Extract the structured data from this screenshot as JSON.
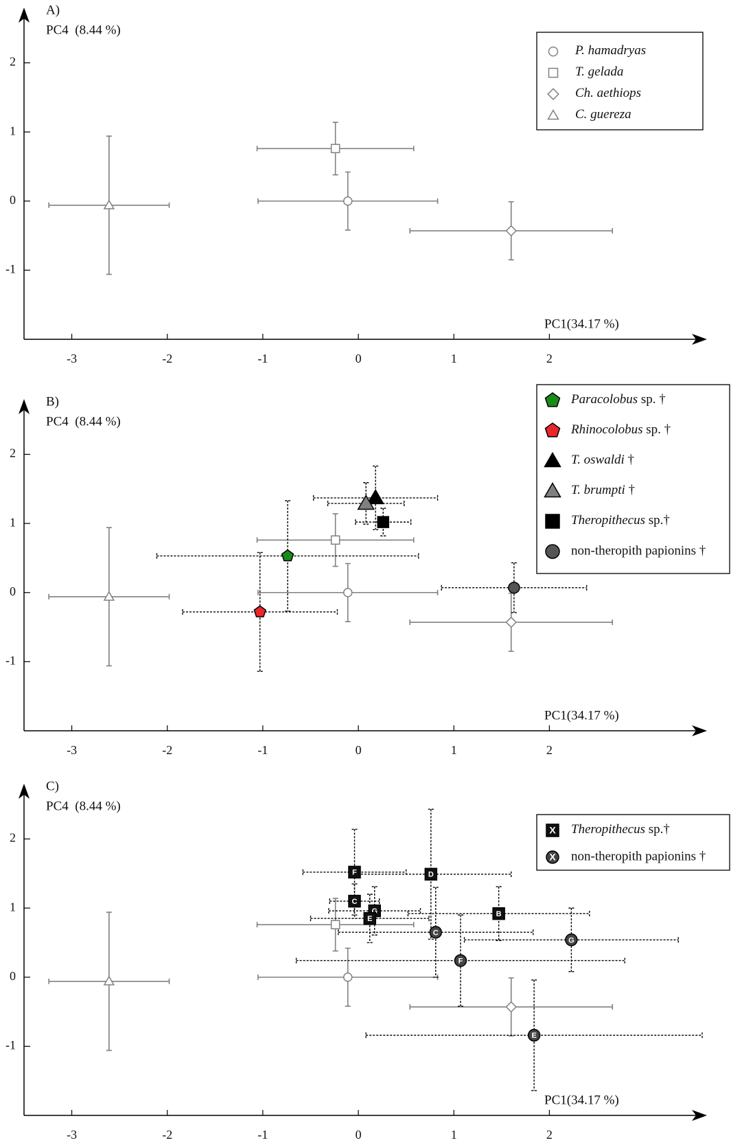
{
  "chart_data": [
    {
      "type": "scatter",
      "title": "A)",
      "x_label": "PC1(34.17 %)",
      "y_label": "PC4  (8.44 %)",
      "xlim": [
        -3.5,
        3.65
      ],
      "ylim": [
        -2,
        2.8
      ],
      "xticks": [
        -3,
        -2,
        -1,
        0,
        1,
        2
      ],
      "yticks": [
        -1,
        0,
        1,
        2
      ],
      "legend": "upper right",
      "series": [
        {
          "name": "P. hamadryas",
          "italic": true,
          "marker": "circle",
          "color": "#ffffff",
          "stroke": "#808080",
          "line": "solid",
          "x": [
            -0.11
          ],
          "values": [
            0
          ],
          "xerr": [
            0.94
          ],
          "yerr": [
            0.42
          ]
        },
        {
          "name": "T. gelada",
          "italic": true,
          "marker": "square",
          "color": "#ffffff",
          "stroke": "#808080",
          "line": "solid",
          "x": [
            -0.24
          ],
          "values": [
            0.76
          ],
          "xerr": [
            0.82
          ],
          "yerr": [
            0.38
          ]
        },
        {
          "name": "Ch. aethiops",
          "italic": true,
          "marker": "diamond",
          "color": "#ffffff",
          "stroke": "#808080",
          "line": "solid",
          "x": [
            1.6
          ],
          "values": [
            -0.43
          ],
          "xerr": [
            1.06
          ],
          "yerr": [
            0.42
          ]
        },
        {
          "name": "C. guereza",
          "italic": true,
          "marker": "triangle",
          "color": "#ffffff",
          "stroke": "#808080",
          "line": "solid",
          "x": [
            -2.61
          ],
          "values": [
            -0.06
          ],
          "xerr": [
            0.63
          ],
          "yerr": [
            1.0
          ]
        }
      ]
    },
    {
      "type": "scatter",
      "title": "B)",
      "x_label": "PC1(34.17 %)",
      "y_label": "PC4  (8.44 %)",
      "xlim": [
        -3.5,
        3.65
      ],
      "ylim": [
        -2,
        2.8
      ],
      "xticks": [
        -3,
        -2,
        -1,
        0,
        1,
        2
      ],
      "yticks": [
        -1,
        0,
        1,
        2
      ],
      "legend": "upper right",
      "series": [
        {
          "marker": "circle",
          "color": "#ffffff",
          "stroke": "#808080",
          "line": "solid",
          "x": [
            -0.11
          ],
          "values": [
            0
          ],
          "xerr": [
            0.94
          ],
          "yerr": [
            0.42
          ]
        },
        {
          "marker": "square",
          "color": "#ffffff",
          "stroke": "#808080",
          "line": "solid",
          "x": [
            -0.24
          ],
          "values": [
            0.76
          ],
          "xerr": [
            0.82
          ],
          "yerr": [
            0.38
          ]
        },
        {
          "marker": "diamond",
          "color": "#ffffff",
          "stroke": "#808080",
          "line": "solid",
          "x": [
            1.6
          ],
          "values": [
            -0.43
          ],
          "xerr": [
            1.06
          ],
          "yerr": [
            0.42
          ]
        },
        {
          "marker": "triangle",
          "color": "#ffffff",
          "stroke": "#808080",
          "line": "solid",
          "x": [
            -2.61
          ],
          "values": [
            -0.06
          ],
          "xerr": [
            0.63
          ],
          "yerr": [
            1.0
          ]
        },
        {
          "name": "Paracolobus sp. †",
          "italic": true,
          "marker": "pentagon",
          "color": "#1a8a1a",
          "stroke": "#000000",
          "line": "dashed",
          "x": [
            -0.74
          ],
          "values": [
            0.53
          ],
          "xerr": [
            1.37
          ],
          "yerr": [
            0.8
          ]
        },
        {
          "name": "Rhinocolobus sp. †",
          "italic": true,
          "marker": "pentagon",
          "color": "#e8262b",
          "stroke": "#000000",
          "line": "dashed",
          "x": [
            -1.03
          ],
          "values": [
            -0.28
          ],
          "xerr": [
            0.81
          ],
          "yerr": [
            0.86
          ]
        },
        {
          "name": "T. oswaldi †",
          "italic": true,
          "marker": "triangle",
          "color": "#000000",
          "stroke": "#000000",
          "line": "dashed",
          "x": [
            0.18
          ],
          "values": [
            1.37
          ],
          "xerr": [
            0.65
          ],
          "yerr": [
            0.46
          ]
        },
        {
          "name": "T. brumpti †",
          "italic": true,
          "marker": "triangle",
          "color": "#808080",
          "stroke": "#000000",
          "line": "dashed",
          "x": [
            0.08
          ],
          "values": [
            1.29
          ],
          "xerr": [
            0.4
          ],
          "yerr": [
            0.3
          ]
        },
        {
          "name": "Theropithecus sp.†",
          "italic": true,
          "marker": "square",
          "color": "#000000",
          "stroke": "#000000",
          "line": "dashed",
          "x": [
            0.26
          ],
          "values": [
            1.02
          ],
          "xerr": [
            0.29
          ],
          "yerr": [
            0.2
          ]
        },
        {
          "name": "non-theropith papionins †",
          "italic": false,
          "marker": "circle",
          "color": "#555555",
          "stroke": "#000000",
          "line": "dashed",
          "x": [
            1.63
          ],
          "values": [
            0.07
          ],
          "xerr": [
            0.76
          ],
          "yerr": [
            0.36
          ]
        }
      ]
    },
    {
      "type": "scatter",
      "title": "C)",
      "x_label": "PC1(34.17 %)",
      "y_label": "PC4  (8.44 %)",
      "xlim": [
        -3.5,
        3.65
      ],
      "ylim": [
        -2,
        2.8
      ],
      "xticks": [
        -3,
        -2,
        -1,
        0,
        1,
        2
      ],
      "yticks": [
        -1,
        0,
        1,
        2
      ],
      "legend": "upper right",
      "legend_marker_label": "X",
      "series": [
        {
          "marker": "circle",
          "color": "#ffffff",
          "stroke": "#808080",
          "line": "solid",
          "x": [
            -0.11
          ],
          "values": [
            0
          ],
          "xerr": [
            0.94
          ],
          "yerr": [
            0.42
          ]
        },
        {
          "marker": "square",
          "color": "#ffffff",
          "stroke": "#808080",
          "line": "solid",
          "x": [
            -0.24
          ],
          "values": [
            0.76
          ],
          "xerr": [
            0.82
          ],
          "yerr": [
            0.38
          ]
        },
        {
          "marker": "diamond",
          "color": "#ffffff",
          "stroke": "#808080",
          "line": "solid",
          "x": [
            1.6
          ],
          "values": [
            -0.43
          ],
          "xerr": [
            1.06
          ],
          "yerr": [
            0.42
          ]
        },
        {
          "marker": "triangle",
          "color": "#ffffff",
          "stroke": "#808080",
          "line": "solid",
          "x": [
            -2.61
          ],
          "values": [
            -0.06
          ],
          "xerr": [
            0.63
          ],
          "yerr": [
            1.0
          ]
        },
        {
          "name": "Theropithecus sp.†",
          "italic": true,
          "marker": "square",
          "color": "#111111",
          "stroke": "#000000",
          "line": "dashed",
          "labels": [
            "F",
            "C",
            "G",
            "E",
            "D",
            "B"
          ],
          "x": [
            -0.04,
            -0.04,
            0.17,
            0.12,
            0.76,
            1.47
          ],
          "values": [
            1.52,
            1.1,
            0.96,
            0.85,
            1.49,
            0.92
          ],
          "xerr": [
            0.54,
            0.26,
            0.48,
            0.62,
            0.84,
            0.95
          ],
          "yerr": [
            0.62,
            0.25,
            0.35,
            0.35,
            0.94,
            0.39
          ]
        },
        {
          "name": "non-theropith papionins †",
          "italic": false,
          "marker": "circle",
          "color": "#444444",
          "stroke": "#000000",
          "line": "dashed",
          "labels": [
            "C",
            "F",
            "G",
            "E"
          ],
          "x": [
            0.81,
            1.07,
            2.23,
            1.84
          ],
          "values": [
            0.65,
            0.24,
            0.54,
            -0.84
          ],
          "xerr": [
            1.02,
            1.72,
            1.12,
            1.76
          ],
          "yerr": [
            0.65,
            0.66,
            0.46,
            0.8
          ]
        }
      ]
    }
  ]
}
